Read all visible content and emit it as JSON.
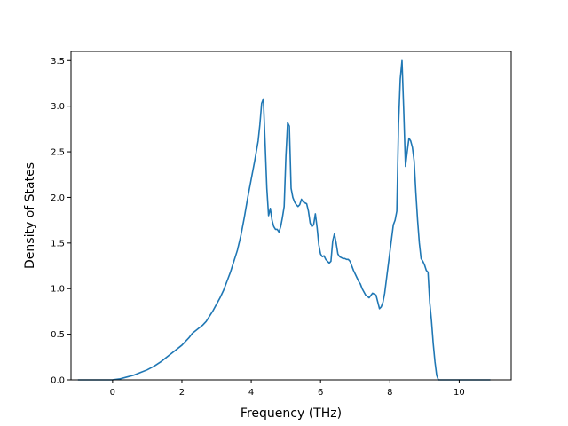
{
  "chart_data": {
    "type": "line",
    "title": "",
    "xlabel": "Frequency (THz)",
    "ylabel": "Density of States",
    "xlim": [
      -1.2,
      11.5
    ],
    "ylim": [
      0.0,
      3.6
    ],
    "xticks": [
      0,
      2,
      4,
      6,
      8,
      10
    ],
    "yticks": [
      0.0,
      0.5,
      1.0,
      1.5,
      2.0,
      2.5,
      3.0,
      3.5
    ],
    "xtick_labels": [
      "0",
      "2",
      "4",
      "6",
      "8",
      "10"
    ],
    "ytick_labels": [
      "0.0",
      "0.5",
      "1.0",
      "1.5",
      "2.0",
      "2.5",
      "3.0",
      "3.5"
    ],
    "grid": false,
    "series": [
      {
        "color": "#1f77b4",
        "x": [
          -1.0,
          -0.5,
          0.0,
          0.2,
          0.4,
          0.6,
          0.8,
          1.0,
          1.2,
          1.4,
          1.6,
          1.8,
          2.0,
          2.1,
          2.2,
          2.3,
          2.4,
          2.5,
          2.6,
          2.7,
          2.8,
          2.9,
          3.0,
          3.1,
          3.2,
          3.3,
          3.4,
          3.5,
          3.6,
          3.7,
          3.8,
          3.9,
          4.0,
          4.1,
          4.2,
          4.25,
          4.3,
          4.35,
          4.4,
          4.45,
          4.5,
          4.55,
          4.6,
          4.65,
          4.7,
          4.75,
          4.8,
          4.85,
          4.9,
          4.95,
          5.0,
          5.05,
          5.1,
          5.15,
          5.2,
          5.25,
          5.3,
          5.35,
          5.4,
          5.45,
          5.5,
          5.55,
          5.6,
          5.65,
          5.7,
          5.75,
          5.8,
          5.85,
          5.9,
          5.95,
          6.0,
          6.05,
          6.1,
          6.15,
          6.2,
          6.25,
          6.3,
          6.35,
          6.4,
          6.45,
          6.5,
          6.55,
          6.6,
          6.65,
          6.7,
          6.75,
          6.8,
          6.85,
          6.9,
          6.95,
          7.0,
          7.05,
          7.1,
          7.15,
          7.2,
          7.3,
          7.4,
          7.5,
          7.6,
          7.7,
          7.75,
          7.8,
          7.85,
          7.9,
          7.95,
          8.0,
          8.05,
          8.1,
          8.15,
          8.2,
          8.25,
          8.3,
          8.35,
          8.4,
          8.45,
          8.5,
          8.55,
          8.6,
          8.65,
          8.7,
          8.75,
          8.8,
          8.85,
          8.9,
          8.95,
          9.0,
          9.05,
          9.1,
          9.15,
          9.2,
          9.25,
          9.3,
          9.35,
          9.4,
          9.5,
          9.6,
          9.65,
          9.7,
          9.75,
          9.8,
          9.85,
          9.9,
          9.95,
          10.0,
          10.5,
          10.9
        ],
        "y": [
          0.0,
          0.0,
          0.0,
          0.01,
          0.03,
          0.05,
          0.08,
          0.11,
          0.15,
          0.2,
          0.26,
          0.32,
          0.38,
          0.42,
          0.46,
          0.51,
          0.54,
          0.57,
          0.6,
          0.64,
          0.7,
          0.76,
          0.83,
          0.9,
          0.98,
          1.08,
          1.18,
          1.3,
          1.42,
          1.58,
          1.78,
          2.0,
          2.2,
          2.4,
          2.62,
          2.8,
          3.03,
          3.08,
          2.6,
          2.1,
          1.8,
          1.88,
          1.75,
          1.68,
          1.65,
          1.65,
          1.62,
          1.68,
          1.78,
          1.9,
          2.45,
          2.82,
          2.78,
          2.1,
          2.0,
          1.95,
          1.92,
          1.9,
          1.92,
          1.98,
          1.95,
          1.94,
          1.93,
          1.85,
          1.72,
          1.68,
          1.7,
          1.82,
          1.67,
          1.48,
          1.38,
          1.35,
          1.36,
          1.32,
          1.3,
          1.28,
          1.3,
          1.52,
          1.6,
          1.5,
          1.38,
          1.35,
          1.34,
          1.33,
          1.33,
          1.32,
          1.32,
          1.3,
          1.25,
          1.2,
          1.16,
          1.12,
          1.08,
          1.05,
          1.0,
          0.93,
          0.9,
          0.95,
          0.93,
          0.78,
          0.8,
          0.85,
          0.95,
          1.1,
          1.25,
          1.4,
          1.55,
          1.7,
          1.75,
          1.85,
          2.8,
          3.3,
          3.5,
          2.95,
          2.34,
          2.5,
          2.65,
          2.62,
          2.55,
          2.4,
          2.05,
          1.75,
          1.5,
          1.33,
          1.3,
          1.26,
          1.2,
          1.18,
          0.85,
          0.65,
          0.4,
          0.2,
          0.05,
          0.0,
          0.0,
          0.0,
          0.0,
          0.0,
          0.0,
          0.0,
          0.0,
          0.0,
          0.0,
          0.0,
          0.0,
          0.0
        ]
      }
    ]
  }
}
